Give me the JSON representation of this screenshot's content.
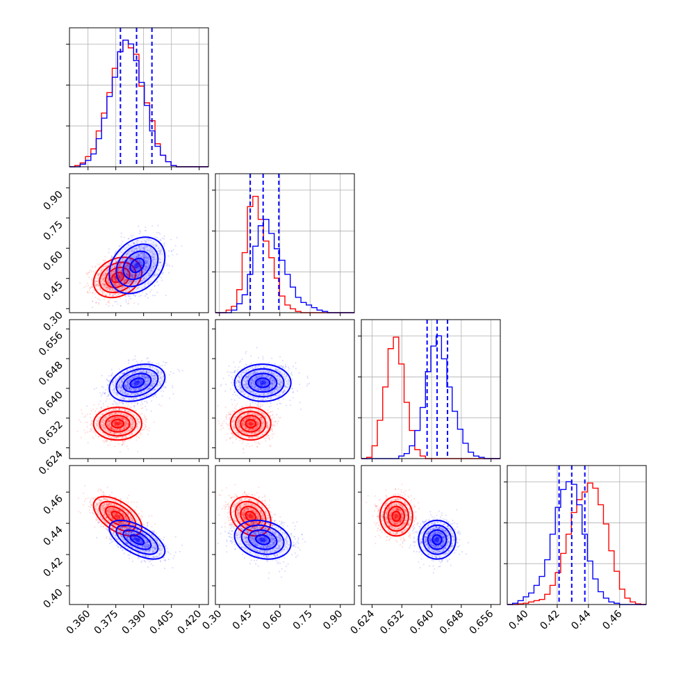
{
  "chart_data": {
    "type": "corner",
    "colors": {
      "red": "#ff0000",
      "blue": "#0000ff"
    },
    "grid": true,
    "parameters": [
      {
        "range": [
          0.35,
          0.425
        ],
        "ticks": [
          "0.360",
          "0.375",
          "0.390",
          "0.405",
          "0.420"
        ]
      },
      {
        "range": [
          0.28,
          0.97
        ],
        "ticks": [
          "0.30",
          "0.45",
          "0.60",
          "0.75",
          "0.90"
        ]
      },
      {
        "range": [
          0.6211,
          0.6585
        ],
        "ticks": [
          "0.624",
          "0.632",
          "0.640",
          "0.648",
          "0.656"
        ]
      },
      {
        "range": [
          0.388,
          0.477
        ],
        "ticks": [
          "0.40",
          "0.42",
          "0.44",
          "0.46"
        ]
      }
    ],
    "series": [
      {
        "color": "#ff0000",
        "means": [
          0.376,
          0.455,
          0.6305,
          0.4445
        ],
        "sigmas": [
          0.0065,
          0.05,
          0.0022,
          0.0063
        ],
        "correlations": [
          [
            0,
            1,
            0.25
          ],
          [
            0,
            2,
            0.0
          ],
          [
            0,
            3,
            -0.55
          ],
          [
            1,
            2,
            0.0
          ],
          [
            1,
            3,
            -0.25
          ],
          [
            2,
            3,
            0.0
          ]
        ],
        "histograms": [
          [
            0,
            0.01,
            0.03,
            0.08,
            0.14,
            0.28,
            0.42,
            0.58,
            0.77,
            0.9,
            0.99,
            0.93,
            0.88,
            0.63,
            0.5,
            0.36,
            0.18,
            0.09,
            0.04,
            0.01,
            0,
            0,
            0,
            0,
            0,
            0
          ],
          [
            0,
            0,
            0.02,
            0.05,
            0.18,
            0.47,
            0.83,
            0.91,
            0.73,
            0.56,
            0.43,
            0.27,
            0.13,
            0.06,
            0.03,
            0.01,
            0,
            0,
            0,
            0,
            0,
            0,
            0,
            0,
            0,
            0
          ],
          [
            0,
            0.01,
            0.1,
            0.3,
            0.56,
            0.86,
            0.95,
            0.74,
            0.44,
            0.22,
            0.07,
            0.02,
            0,
            0,
            0,
            0,
            0,
            0,
            0,
            0,
            0,
            0,
            0,
            0,
            0,
            0
          ],
          [
            0,
            0,
            0.005,
            0.01,
            0.02,
            0.03,
            0.04,
            0.08,
            0.15,
            0.25,
            0.4,
            0.55,
            0.72,
            0.82,
            0.88,
            0.95,
            0.91,
            0.78,
            0.63,
            0.42,
            0.26,
            0.12,
            0.05,
            0.02,
            0.005,
            0
          ]
        ]
      },
      {
        "color": "#0000ff",
        "means": [
          0.3865,
          0.515,
          0.6415,
          0.4295
        ],
        "sigmas": [
          0.0075,
          0.07,
          0.0025,
          0.0062
        ],
        "correlations": [
          [
            0,
            1,
            0.3
          ],
          [
            0,
            2,
            0.3
          ],
          [
            0,
            3,
            -0.6
          ],
          [
            1,
            2,
            0.0
          ],
          [
            1,
            3,
            -0.2
          ],
          [
            2,
            3,
            0.0
          ]
        ],
        "histograms": [
          [
            0,
            0,
            0.02,
            0.05,
            0.1,
            0.22,
            0.38,
            0.55,
            0.7,
            0.9,
            0.99,
            0.96,
            0.83,
            0.66,
            0.48,
            0.28,
            0.16,
            0.09,
            0.04,
            0.01,
            0,
            0,
            0,
            0,
            0,
            0
          ],
          [
            0,
            0,
            0,
            0.02,
            0.07,
            0.14,
            0.3,
            0.52,
            0.68,
            0.73,
            0.62,
            0.5,
            0.41,
            0.3,
            0.2,
            0.12,
            0.08,
            0.06,
            0.04,
            0.02,
            0.01,
            0,
            0,
            0,
            0,
            0
          ],
          [
            0,
            0,
            0,
            0,
            0,
            0,
            0,
            0.02,
            0.04,
            0.1,
            0.22,
            0.4,
            0.68,
            0.88,
            0.96,
            0.78,
            0.56,
            0.37,
            0.23,
            0.12,
            0.05,
            0.02,
            0.01,
            0,
            0,
            0
          ],
          [
            0,
            0.01,
            0.03,
            0.06,
            0.09,
            0.15,
            0.22,
            0.35,
            0.55,
            0.76,
            0.9,
            0.96,
            0.94,
            0.78,
            0.55,
            0.34,
            0.2,
            0.1,
            0.05,
            0.02,
            0.01,
            0,
            0,
            0,
            0,
            0
          ]
        ]
      }
    ],
    "quantile_lines": [
      [
        0.3775,
        0.3862,
        0.3945
      ],
      [
        0.453,
        0.517,
        0.595
      ],
      [
        0.6388,
        0.6415,
        0.6443
      ],
      [
        0.4212,
        0.4293,
        0.4377
      ]
    ]
  }
}
